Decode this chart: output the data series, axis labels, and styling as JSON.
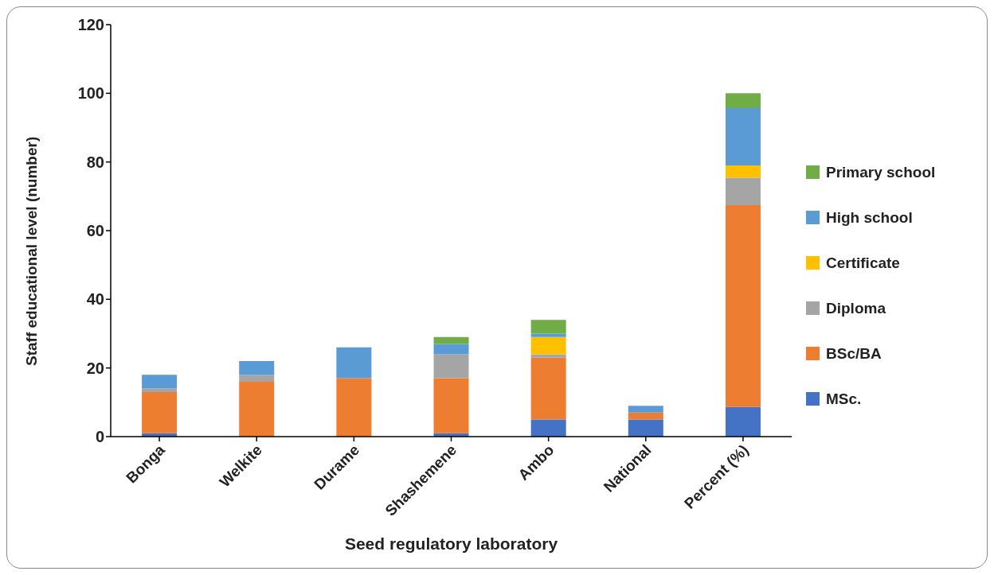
{
  "chart_data": {
    "type": "bar",
    "stacked": true,
    "xlabel": "Seed regulatory laboratory",
    "ylabel": "Staff educational level (number)",
    "categories": [
      "Bonga",
      "Welkite",
      "Durame",
      "Shashemene",
      "Ambo",
      "National",
      "Percent (%)"
    ],
    "series": [
      {
        "name": "MSc.",
        "color": "#4472c4",
        "values": [
          1,
          0,
          0,
          1,
          5,
          5,
          8.7
        ]
      },
      {
        "name": "BSc/BA",
        "color": "#ed7d31",
        "values": [
          12,
          16,
          17,
          16,
          18,
          2,
          58.7
        ]
      },
      {
        "name": "Diploma",
        "color": "#a5a5a5",
        "values": [
          1,
          2,
          0,
          7,
          1,
          0,
          8.0
        ]
      },
      {
        "name": "Certificate",
        "color": "#ffc000",
        "values": [
          0,
          0,
          0,
          0,
          5,
          0,
          3.6
        ]
      },
      {
        "name": "High school",
        "color": "#5b9bd5",
        "values": [
          4,
          4,
          9,
          3,
          1,
          2,
          16.7
        ]
      },
      {
        "name": "Primary school",
        "color": "#70ad47",
        "values": [
          0,
          0,
          0,
          2,
          4,
          0,
          4.3
        ]
      }
    ],
    "ylim": [
      0,
      120
    ],
    "yticks": [
      0,
      20,
      40,
      60,
      80,
      100,
      120
    ],
    "grid": false,
    "legend": "right"
  }
}
